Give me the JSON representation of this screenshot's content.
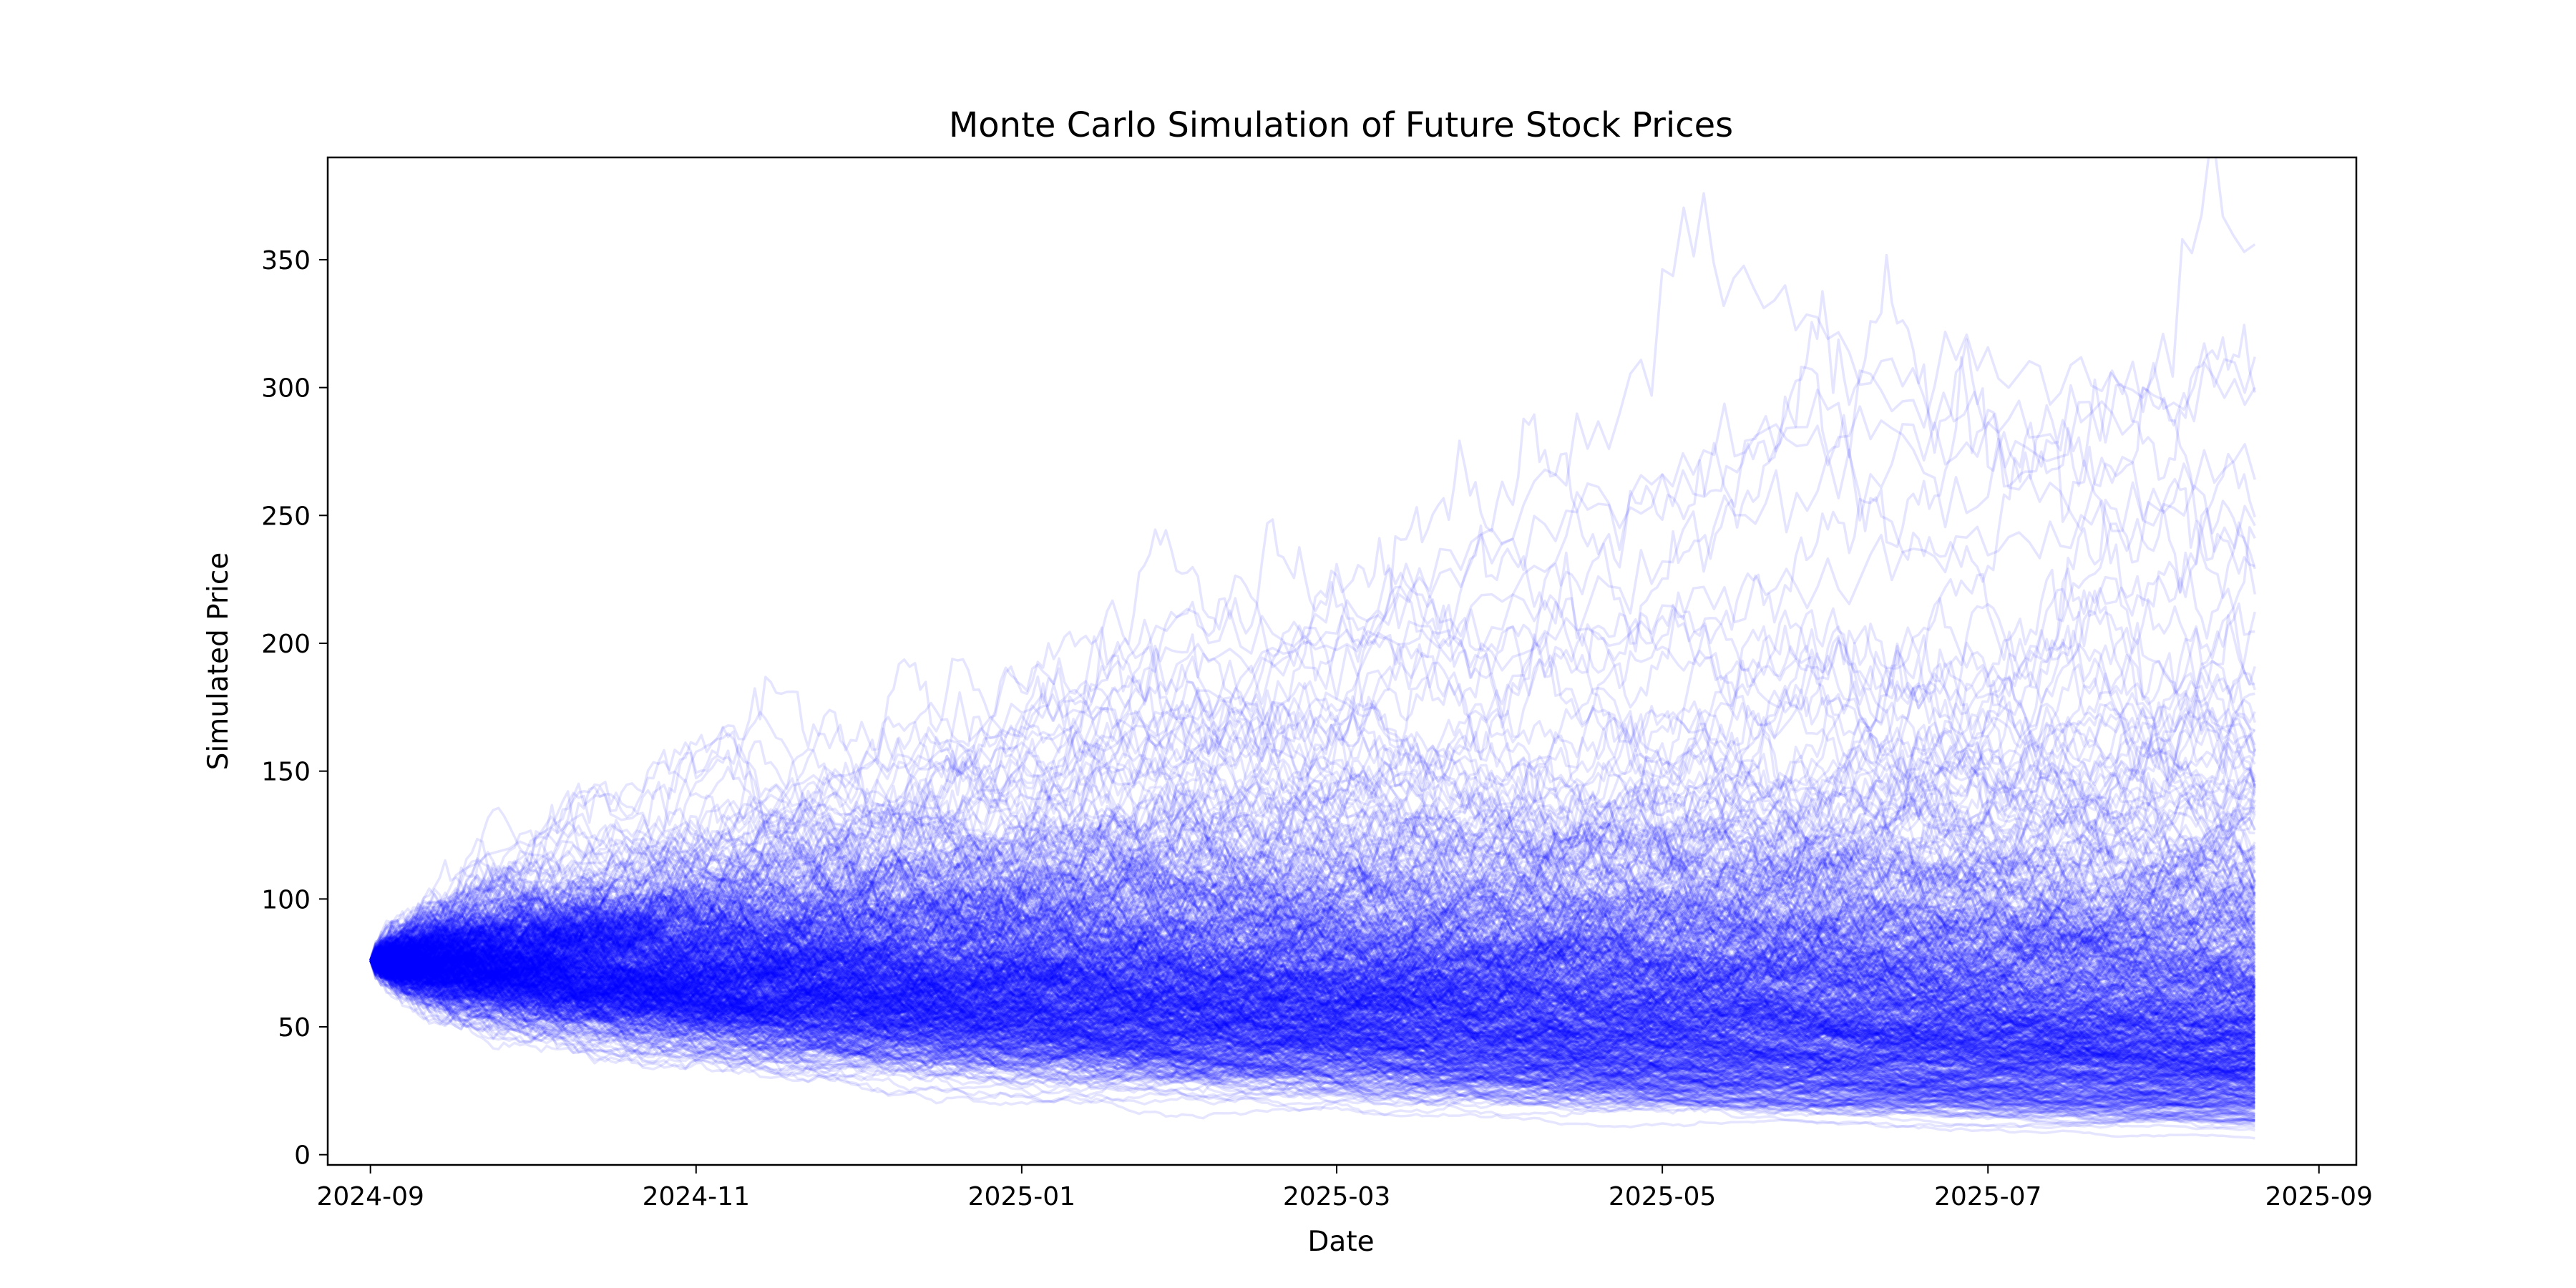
{
  "chart_data": {
    "type": "line",
    "title": "Monte Carlo Simulation of Future Stock Prices",
    "xlabel": "Date",
    "ylabel": "Simulated Price",
    "x_start": "2024-09-01",
    "x_end": "2025-08-20",
    "xlim": [
      "2024-08-24",
      "2025-09-08"
    ],
    "ylim": [
      -4,
      390
    ],
    "x_ticks": [
      {
        "value": "2024-09-01",
        "label": "2024-09"
      },
      {
        "value": "2024-11-01",
        "label": "2024-11"
      },
      {
        "value": "2025-01-01",
        "label": "2025-01"
      },
      {
        "value": "2025-03-01",
        "label": "2025-03"
      },
      {
        "value": "2025-05-01",
        "label": "2025-05"
      },
      {
        "value": "2025-07-01",
        "label": "2025-07"
      },
      {
        "value": "2025-09-01",
        "label": "2025-09"
      }
    ],
    "y_ticks": [
      0,
      50,
      100,
      150,
      200,
      250,
      300,
      350
    ],
    "start_price": 76,
    "series_color": "#0000ff",
    "series_alpha": 0.1,
    "grid": false,
    "legend": "none",
    "highlight_paths": [
      {
        "points": [
          [
            "2024-09-01",
            76
          ],
          [
            "2024-10-01",
            112
          ],
          [
            "2024-11-01",
            122
          ],
          [
            "2024-12-01",
            150
          ],
          [
            "2025-01-01",
            172
          ],
          [
            "2025-02-01",
            190
          ],
          [
            "2025-03-01",
            205
          ],
          [
            "2025-04-01",
            248
          ],
          [
            "2025-04-25",
            298
          ],
          [
            "2025-05-05",
            356
          ],
          [
            "2025-05-20",
            342
          ],
          [
            "2025-06-15",
            300
          ],
          [
            "2025-07-10",
            276
          ],
          [
            "2025-08-01",
            300
          ],
          [
            "2025-08-10",
            372
          ],
          [
            "2025-08-20",
            356
          ]
        ]
      },
      {
        "points": [
          [
            "2024-09-01",
            76
          ],
          [
            "2024-10-01",
            118
          ],
          [
            "2024-11-01",
            128
          ],
          [
            "2024-12-01",
            152
          ],
          [
            "2025-01-01",
            170
          ],
          [
            "2025-02-01",
            210
          ],
          [
            "2025-03-01",
            190
          ],
          [
            "2025-04-01",
            220
          ],
          [
            "2025-05-01",
            260
          ],
          [
            "2025-06-01",
            288
          ],
          [
            "2025-07-01",
            312
          ],
          [
            "2025-08-01",
            300
          ],
          [
            "2025-08-20",
            312
          ]
        ]
      },
      {
        "points": [
          [
            "2024-09-01",
            76
          ],
          [
            "2024-10-01",
            132
          ],
          [
            "2024-11-01",
            118
          ],
          [
            "2024-12-01",
            140
          ],
          [
            "2025-01-01",
            160
          ],
          [
            "2025-02-01",
            172
          ],
          [
            "2025-03-01",
            200
          ],
          [
            "2025-04-01",
            240
          ],
          [
            "2025-05-01",
            270
          ],
          [
            "2025-06-01",
            286
          ],
          [
            "2025-07-01",
            262
          ],
          [
            "2025-08-01",
            258
          ],
          [
            "2025-08-20",
            264
          ]
        ]
      },
      {
        "points": [
          [
            "2024-09-01",
            76
          ],
          [
            "2024-10-01",
            100
          ],
          [
            "2024-11-01",
            110
          ],
          [
            "2024-12-01",
            130
          ],
          [
            "2025-01-01",
            150
          ],
          [
            "2025-02-01",
            168
          ],
          [
            "2025-03-01",
            180
          ],
          [
            "2025-04-01",
            200
          ],
          [
            "2025-05-01",
            210
          ],
          [
            "2025-06-01",
            230
          ],
          [
            "2025-07-01",
            240
          ],
          [
            "2025-08-01",
            250
          ],
          [
            "2025-08-20",
            246
          ]
        ]
      },
      {
        "points": [
          [
            "2024-09-01",
            76
          ],
          [
            "2024-10-01",
            96
          ],
          [
            "2024-11-01",
            120
          ],
          [
            "2024-12-01",
            128
          ],
          [
            "2025-01-01",
            140
          ],
          [
            "2025-02-01",
            178
          ],
          [
            "2025-03-01",
            196
          ],
          [
            "2025-04-01",
            210
          ],
          [
            "2025-05-01",
            232
          ],
          [
            "2025-06-01",
            262
          ],
          [
            "2025-07-01",
            282
          ],
          [
            "2025-08-01",
            290
          ],
          [
            "2025-08-20",
            300
          ]
        ]
      }
    ],
    "band_quantiles": {
      "dates": [
        "2024-09-01",
        "2024-10-01",
        "2024-11-01",
        "2024-12-01",
        "2025-01-01",
        "2025-02-01",
        "2025-03-01",
        "2025-04-01",
        "2025-05-01",
        "2025-06-01",
        "2025-07-01",
        "2025-08-01",
        "2025-08-20"
      ],
      "p02": [
        76,
        52,
        45,
        40,
        36,
        33,
        30,
        27,
        24,
        22,
        20,
        17,
        15
      ],
      "p50": [
        76,
        75,
        74,
        73,
        71,
        70,
        68,
        66,
        64,
        62,
        60,
        58,
        57
      ],
      "p97": [
        76,
        105,
        120,
        135,
        148,
        160,
        172,
        180,
        190,
        198,
        206,
        212,
        215
      ]
    }
  }
}
